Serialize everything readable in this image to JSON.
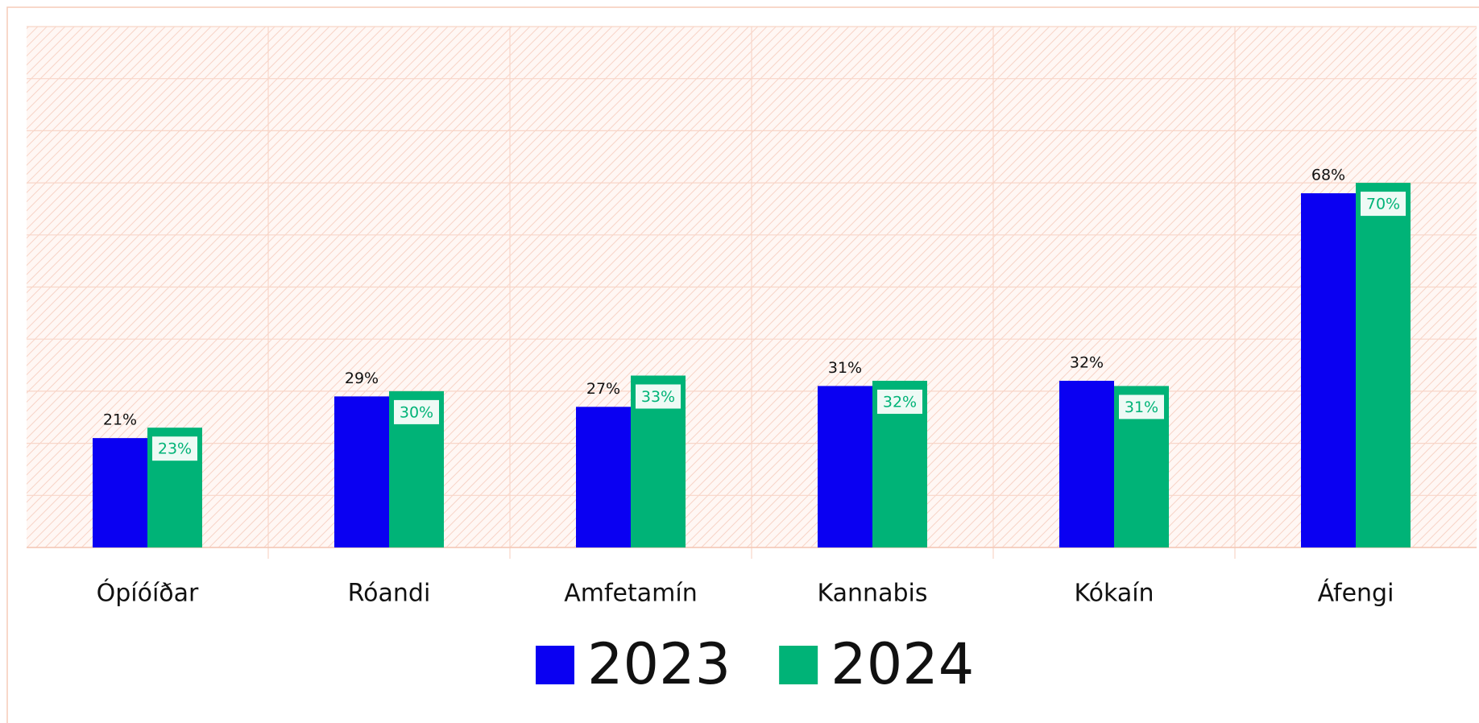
{
  "chart_data": {
    "type": "bar",
    "categories": [
      "Ópíóíðar",
      "Róandi",
      "Amfetamín",
      "Kannabis",
      "Kókaín",
      "Áfengi"
    ],
    "series": [
      {
        "name": "2023",
        "color": "#0a00f2",
        "values": [
          21,
          29,
          27,
          31,
          32,
          68
        ],
        "value_labels": [
          "21%",
          "29%",
          "27%",
          "31%",
          "32%",
          "68%"
        ]
      },
      {
        "name": "2024",
        "color": "#00b377",
        "values": [
          23,
          30,
          33,
          32,
          31,
          70
        ],
        "value_labels": [
          "23%",
          "30%",
          "33%",
          "32%",
          "31%",
          "70%"
        ]
      }
    ],
    "ylim": [
      0,
      100
    ],
    "yticks": [
      0,
      10,
      20,
      30,
      40,
      50,
      60,
      70,
      80,
      90,
      100
    ],
    "grid": true,
    "legend": "bottom"
  }
}
